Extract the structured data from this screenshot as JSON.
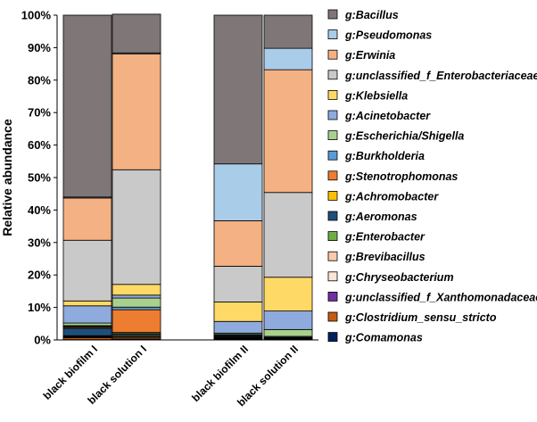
{
  "chart_data": {
    "type": "bar",
    "stacked": true,
    "percent": true,
    "ylabel": "Relative abundance",
    "ylim": [
      0,
      100
    ],
    "yticks": [
      "0%",
      "10%",
      "20%",
      "30%",
      "40%",
      "50%",
      "60%",
      "70%",
      "80%",
      "90%",
      "100%"
    ],
    "categories": [
      "black biofilm I",
      "black solution I",
      "black biofilm II",
      "black solution II"
    ],
    "legend_position": "right",
    "series": [
      {
        "name": "g:Bacillus",
        "color": "#7f7777",
        "values": [
          56.0,
          11.9,
          45.8,
          10.2
        ]
      },
      {
        "name": "g:Pseudomonas",
        "color": "#a9cce9",
        "values": [
          0.3,
          0.3,
          17.5,
          6.6
        ]
      },
      {
        "name": "g:Erwinia",
        "color": "#f4b183",
        "values": [
          13.0,
          35.7,
          14.0,
          37.8
        ]
      },
      {
        "name": "g:unclassified_f_Enterobacteriaceae",
        "color": "#c9c9c9",
        "values": [
          18.7,
          35.3,
          11.0,
          26.1
        ]
      },
      {
        "name": "g:Klebsiella",
        "color": "#ffd966",
        "values": [
          1.5,
          3.3,
          6.0,
          10.4
        ]
      },
      {
        "name": "g:Acinetobacter",
        "color": "#8faadc",
        "values": [
          5.3,
          0.9,
          3.6,
          5.7
        ]
      },
      {
        "name": "g:Escherichia/Shigella",
        "color": "#a9d18e",
        "values": [
          0.8,
          2.8,
          0.4,
          2.1
        ]
      },
      {
        "name": "g:Burkholderia",
        "color": "#5b9bd5",
        "values": [
          0.2,
          0.8,
          0.3,
          0.3
        ]
      },
      {
        "name": "g:Stenotrophomonas",
        "color": "#ed7d31",
        "values": [
          0.3,
          7.0,
          0.2,
          0.1
        ]
      },
      {
        "name": "g:Achromobacter",
        "color": "#ffc000",
        "values": [
          0.3,
          0.3,
          0.1,
          0.2
        ]
      },
      {
        "name": "g:Aeromonas",
        "color": "#1f4e79",
        "values": [
          2.3,
          0.5,
          0.3,
          0.2
        ]
      },
      {
        "name": "g:Enterobacter",
        "color": "#70ad47",
        "values": [
          0.2,
          0.4,
          0.2,
          0.2
        ]
      },
      {
        "name": "g:Brevibacillus",
        "color": "#f8cbad",
        "values": [
          0.2,
          0.1,
          0.1,
          0.0
        ]
      },
      {
        "name": "g:Chryseobacterium",
        "color": "#fbe5d6",
        "values": [
          0.1,
          0.1,
          0.1,
          0.0
        ]
      },
      {
        "name": "g:unclassified_f_Xanthomonadaceae",
        "color": "#7030a0",
        "values": [
          0.1,
          0.1,
          0.1,
          0.0
        ]
      },
      {
        "name": "g:Clostridium_sensu_stricto",
        "color": "#c55a11",
        "values": [
          0.6,
          0.5,
          0.2,
          0.0
        ]
      },
      {
        "name": "g:Comamonas",
        "color": "#002060",
        "values": [
          0.1,
          0.3,
          0.1,
          0.1
        ]
      }
    ]
  }
}
